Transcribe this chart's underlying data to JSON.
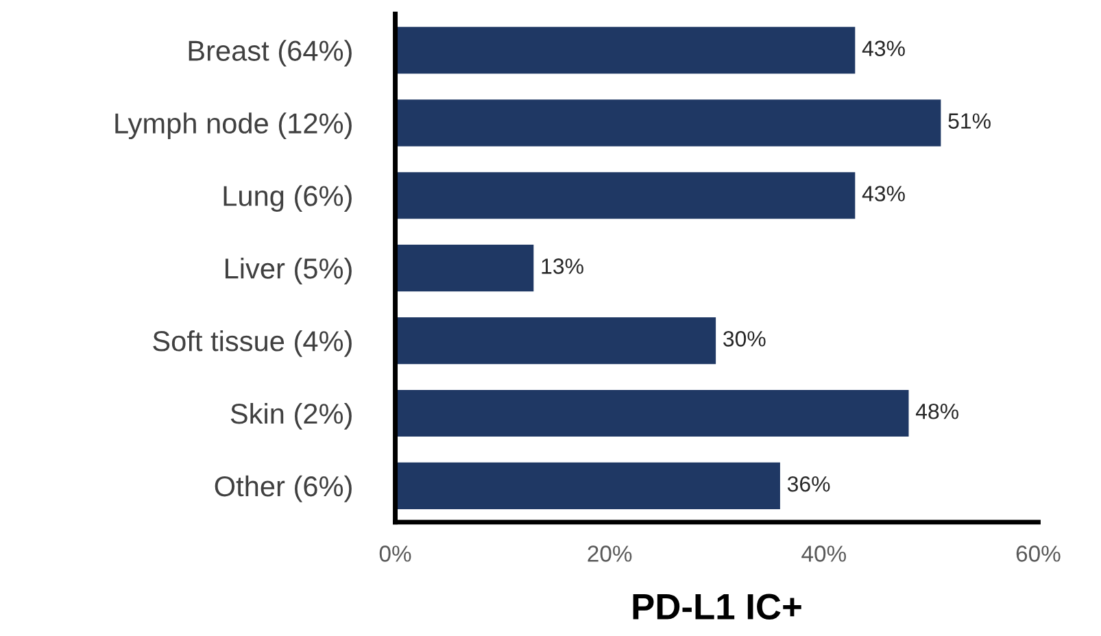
{
  "chart_data": {
    "type": "bar",
    "orientation": "horizontal",
    "xlabel": "PD-L1 IC+",
    "categories": [
      "Breast (64%)",
      "Lymph node (12%)",
      "Lung (6%)",
      "Liver (5%)",
      "Soft tissue (4%)",
      "Skin (2%)",
      "Other (6%)"
    ],
    "values": [
      43,
      51,
      43,
      13,
      30,
      48,
      36
    ],
    "value_labels": [
      "43%",
      "51%",
      "43%",
      "13%",
      "30%",
      "48%",
      "36%"
    ],
    "color": "#1f3864",
    "xlim": [
      0,
      60
    ],
    "xticks": [
      {
        "value": 0,
        "label": "0%"
      },
      {
        "value": 20,
        "label": "20%"
      },
      {
        "value": 40,
        "label": "40%"
      },
      {
        "value": 60,
        "label": "60%"
      }
    ],
    "grid": false,
    "legend": false
  }
}
